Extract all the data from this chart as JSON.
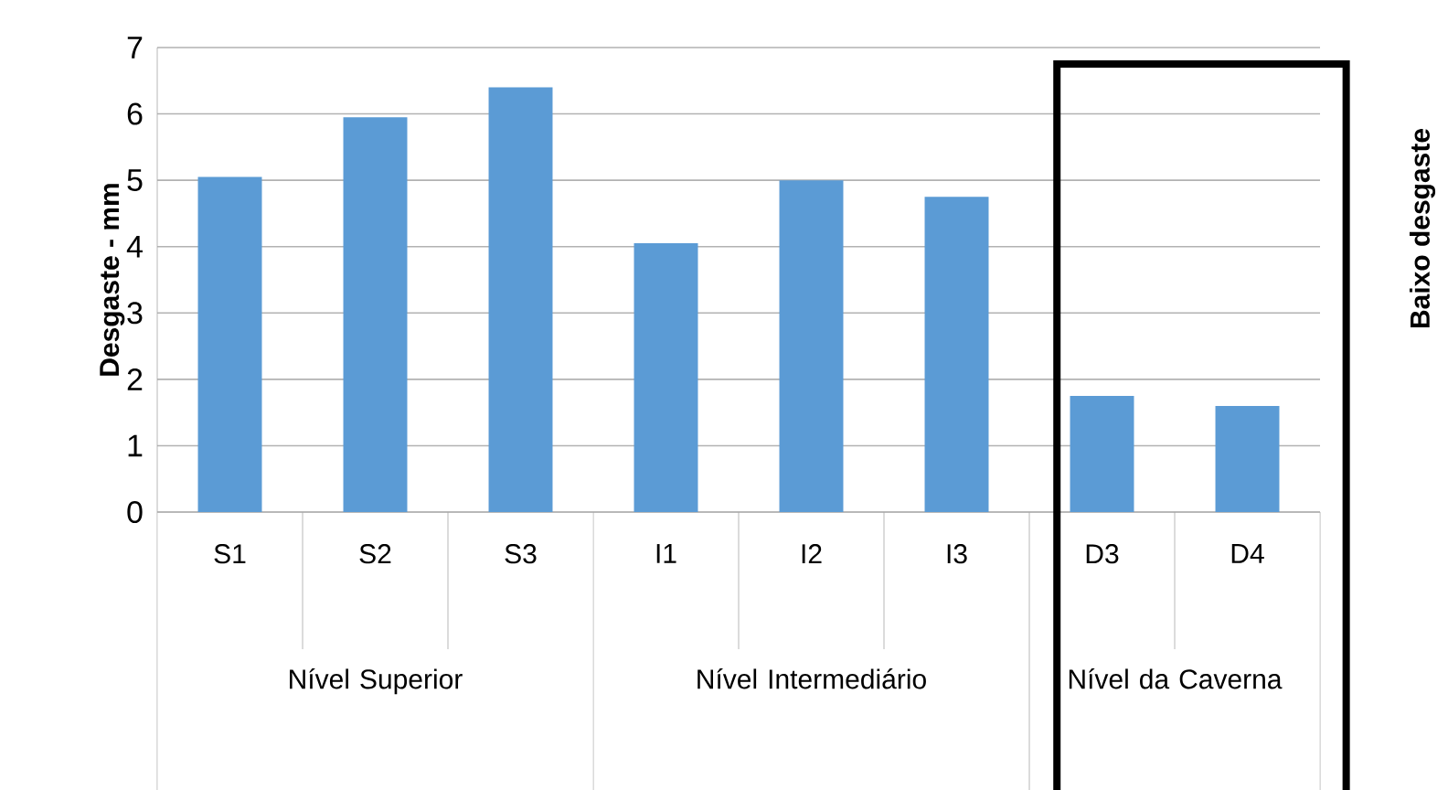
{
  "chart_data": {
    "type": "bar",
    "ylabel": "Desgaste - mm",
    "categories": [
      "S1",
      "S2",
      "S3",
      "I1",
      "I2",
      "I3",
      "D3",
      "D4"
    ],
    "values": [
      5.05,
      5.95,
      6.4,
      4.05,
      5.0,
      4.75,
      1.75,
      1.6
    ],
    "color": "#5b9bd5",
    "ylim": [
      0,
      7
    ],
    "yticks": [
      0,
      1,
      2,
      3,
      4,
      5,
      6,
      7
    ],
    "grid": "y",
    "annotations": [
      "Nível Superior",
      "Nível Intermediário",
      "Nível da Caverna",
      "Baixo desgaste"
    ]
  }
}
